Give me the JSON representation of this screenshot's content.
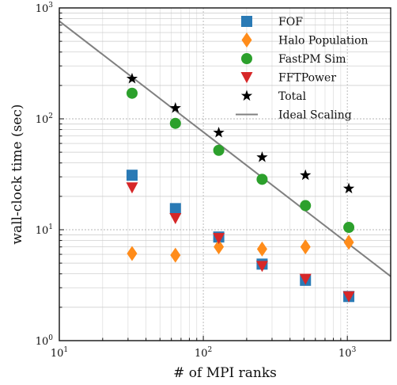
{
  "chart_data": {
    "type": "scatter",
    "title": "",
    "xlabel": "# of MPI ranks",
    "ylabel": "wall-clock time (sec)",
    "xscale": "log",
    "yscale": "log",
    "xlim": [
      10,
      2000
    ],
    "ylim": [
      1,
      1000
    ],
    "grid": true,
    "legend_position": "top-right",
    "x_ticks": [
      {
        "value": 10,
        "base": "10",
        "exp": "1"
      },
      {
        "value": 100,
        "base": "10",
        "exp": "2"
      },
      {
        "value": 1000,
        "base": "10",
        "exp": "3"
      }
    ],
    "y_ticks": [
      {
        "value": 1,
        "base": "10",
        "exp": "0"
      },
      {
        "value": 10,
        "base": "10",
        "exp": "1"
      },
      {
        "value": 100,
        "base": "10",
        "exp": "2"
      },
      {
        "value": 1000,
        "base": "10",
        "exp": "3"
      }
    ],
    "series": [
      {
        "name": "FOF",
        "marker": "square",
        "color": "#2a7ab5",
        "x": [
          32,
          64,
          128,
          256,
          512,
          1024
        ],
        "y": [
          31,
          15.5,
          8.6,
          4.9,
          3.5,
          2.5
        ]
      },
      {
        "name": "Halo Population",
        "marker": "diamond",
        "color": "#ff8c1a",
        "x": [
          32,
          64,
          128,
          256,
          512,
          1024
        ],
        "y": [
          6.1,
          5.9,
          7.0,
          6.7,
          7.0,
          7.7
        ]
      },
      {
        "name": "FastPM Sim",
        "marker": "circle",
        "color": "#2ca02c",
        "x": [
          32,
          64,
          128,
          256,
          512,
          1024
        ],
        "y": [
          170,
          91,
          52,
          28.5,
          16.5,
          10.5
        ]
      },
      {
        "name": "FFTPower",
        "marker": "triangle-down",
        "color": "#d62728",
        "x": [
          32,
          64,
          128,
          256,
          512,
          1024
        ],
        "y": [
          24,
          12.7,
          8.4,
          4.7,
          3.6,
          2.5
        ]
      },
      {
        "name": "Total",
        "marker": "star",
        "color": "#000000",
        "x": [
          32,
          64,
          128,
          256,
          512,
          1024
        ],
        "y": [
          230,
          125,
          75,
          45,
          31,
          23.5
        ]
      },
      {
        "name": "Ideal Scaling",
        "marker": "line",
        "color": "#808080",
        "x": [
          10,
          2000
        ],
        "y": [
          760,
          3.8
        ]
      }
    ]
  }
}
